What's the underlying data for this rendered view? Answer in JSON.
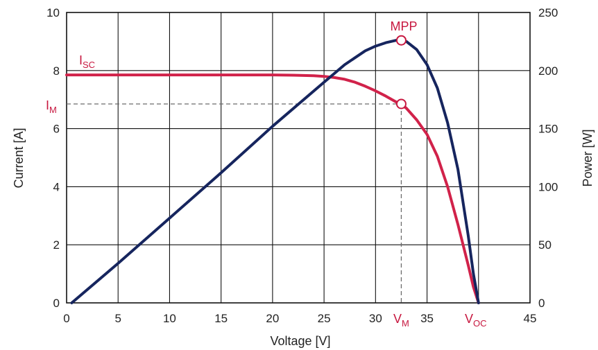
{
  "chart_data": {
    "type": "line",
    "xlabel": "Voltage [V]",
    "ylabel_left": "Current [A]",
    "ylabel_right": "Power [W]",
    "xlim": [
      0,
      45
    ],
    "ylim_left": [
      0,
      10
    ],
    "ylim_right": [
      0,
      250
    ],
    "grid": true,
    "x_ticks": [
      "0",
      "5",
      "10",
      "15",
      "20",
      "25",
      "30",
      "35",
      "45"
    ],
    "y_ticks_left": [
      "0",
      "2",
      "4",
      "6",
      "8",
      "10"
    ],
    "y_ticks_right": [
      "0",
      "50",
      "100",
      "150",
      "200",
      "250"
    ],
    "colors": {
      "current": "#d1224a",
      "power": "#16255e",
      "annotation": "#c7173f"
    },
    "series": [
      {
        "axis": "left",
        "color": "#d1224a",
        "x": [
          0,
          10,
          20,
          22,
          24,
          25,
          26,
          27,
          28,
          29,
          30,
          31,
          32,
          32.5,
          33,
          34,
          35,
          36,
          37,
          38,
          39,
          39.5,
          40
        ],
        "y": [
          7.85,
          7.85,
          7.85,
          7.84,
          7.82,
          7.8,
          7.76,
          7.7,
          7.6,
          7.46,
          7.3,
          7.12,
          6.92,
          6.85,
          6.7,
          6.3,
          5.8,
          5.05,
          4.0,
          2.7,
          1.3,
          0.55,
          0
        ]
      },
      {
        "axis": "right",
        "color": "#16255e",
        "x": [
          0.5,
          5,
          10,
          15,
          20,
          25,
          27,
          29,
          30,
          31,
          32,
          32.5,
          33,
          34,
          35,
          36,
          37,
          38,
          39,
          39.5,
          40
        ],
        "y": [
          0,
          34,
          73,
          112,
          152,
          190,
          205,
          217,
          221,
          224,
          226,
          226,
          225,
          218,
          205,
          185,
          155,
          115,
          58,
          25,
          0
        ]
      }
    ],
    "annotations": [
      {
        "label": "MPP",
        "x": 32.5,
        "y_right": 226
      },
      {
        "label_main": "I",
        "label_sub": "SC",
        "y_left": 7.85
      },
      {
        "label_main": "I",
        "label_sub": "M",
        "y_left": 6.85
      },
      {
        "label_main": "V",
        "label_sub": "M",
        "x": 32.5
      },
      {
        "label_main": "V",
        "label_sub": "OC",
        "x": 40
      }
    ]
  }
}
